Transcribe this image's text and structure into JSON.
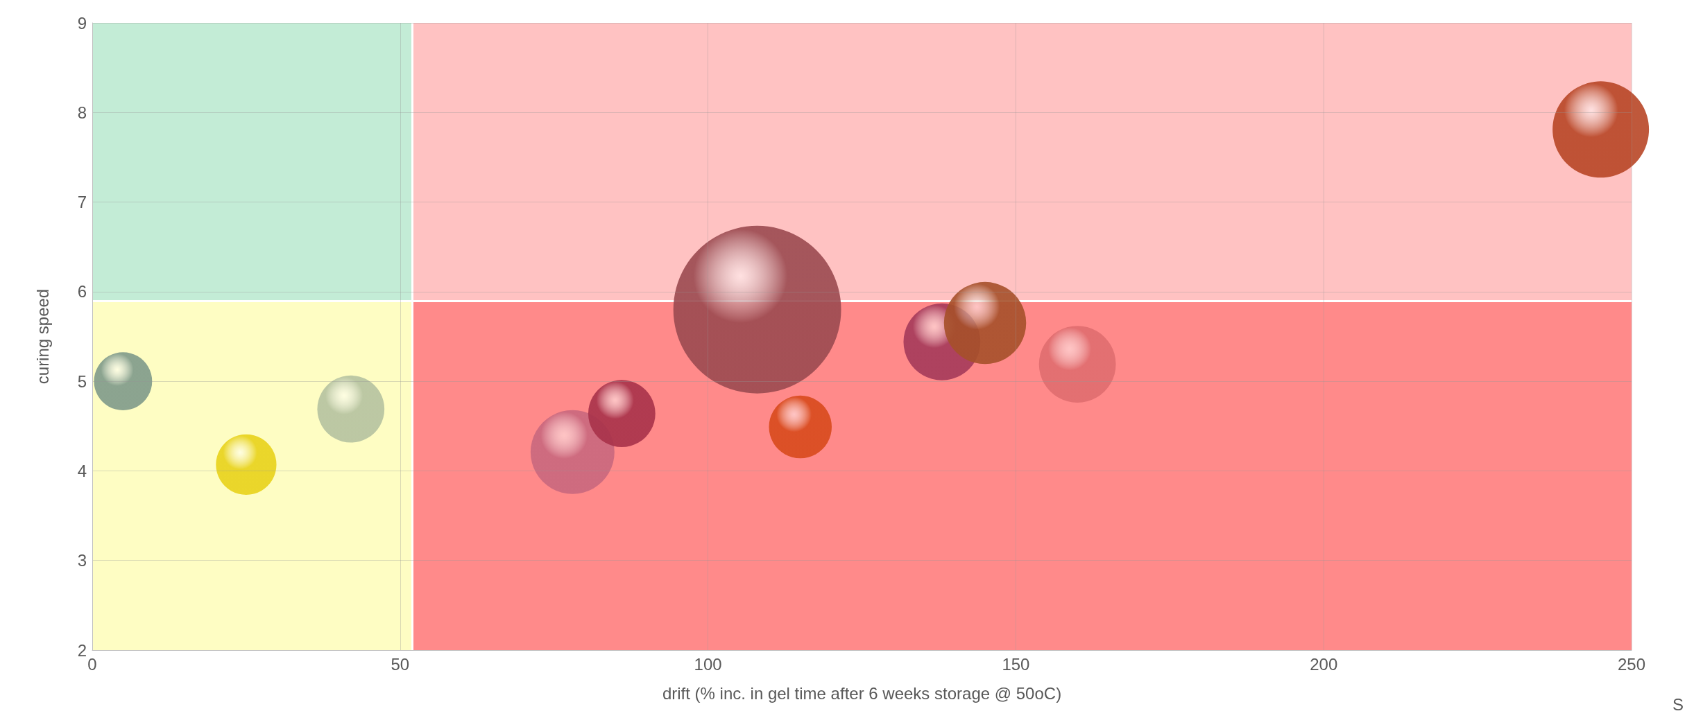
{
  "chart_data": {
    "type": "bubble",
    "xlabel": "drift (% inc. in gel time after 6 weeks storage @ 50oC)",
    "ylabel": "curing speed",
    "x": [
      5,
      25,
      42,
      78,
      86,
      108,
      115,
      138,
      145,
      160,
      245
    ],
    "values": [
      5.0,
      4.07,
      4.69,
      4.21,
      4.64,
      5.8,
      4.49,
      5.44,
      5.65,
      5.19,
      7.81
    ],
    "sizes": [
      0.12,
      0.13,
      0.16,
      0.25,
      0.16,
      1,
      0.14,
      0.21,
      0.24,
      0.21,
      0.33
    ],
    "colors": [
      "#7f9a8a",
      "#e8d21a",
      "#b5c2a0",
      "#c9687e",
      "#a8324a",
      "#9b4a50",
      "#d84a1c",
      "#a53a5a",
      "#a6502a",
      "#e06d6f",
      "#b84626"
    ],
    "xlim": [
      0,
      250
    ],
    "xticks": [
      0,
      50,
      100,
      150,
      200,
      250
    ],
    "ylim": [
      2,
      9
    ],
    "yticks": [
      2,
      3,
      4,
      5,
      6,
      7,
      8,
      9
    ],
    "grid": true,
    "marker": "circle",
    "ref_lines": [
      {
        "axis": "x",
        "value": 52,
        "color": "#ffffff"
      },
      {
        "axis": "y",
        "value": 5.9,
        "color": "#ffffff"
      }
    ],
    "annotations": [
      "S"
    ]
  }
}
